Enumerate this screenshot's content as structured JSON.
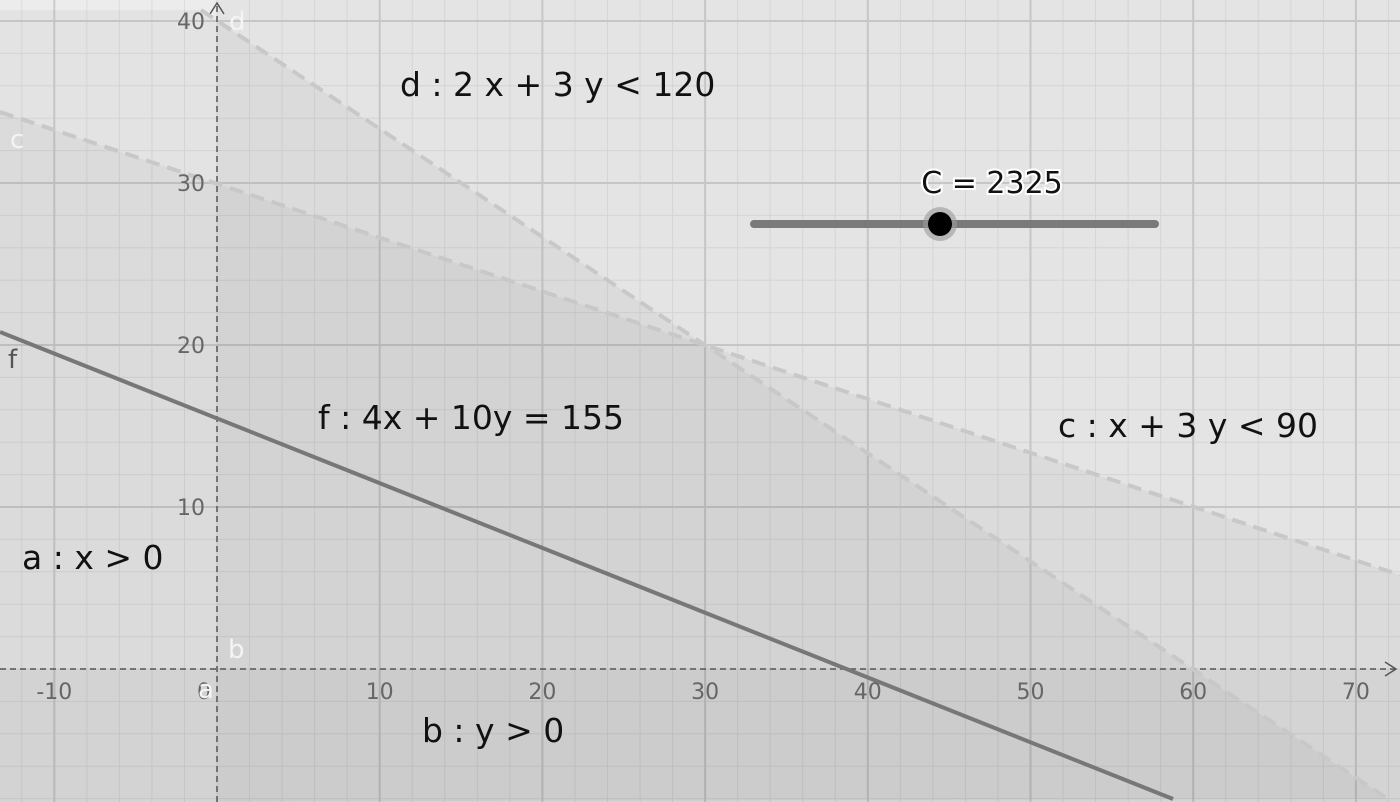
{
  "axes": {
    "xticks": [
      -10,
      0,
      10,
      20,
      30,
      40,
      50,
      60,
      70
    ],
    "yticks": [
      10,
      20,
      30,
      40
    ]
  },
  "labels": {
    "d": "d : 2 x + 3 y < 120",
    "f": "f : 4x + 10y = 155",
    "c": "c : x + 3 y < 90",
    "a": "a : x > 0",
    "b": "b : y > 0"
  },
  "line_names": {
    "d": "d",
    "c": "c",
    "f": "f",
    "b": "b",
    "a": "a"
  },
  "slider": {
    "label": "C = 2325"
  }
}
